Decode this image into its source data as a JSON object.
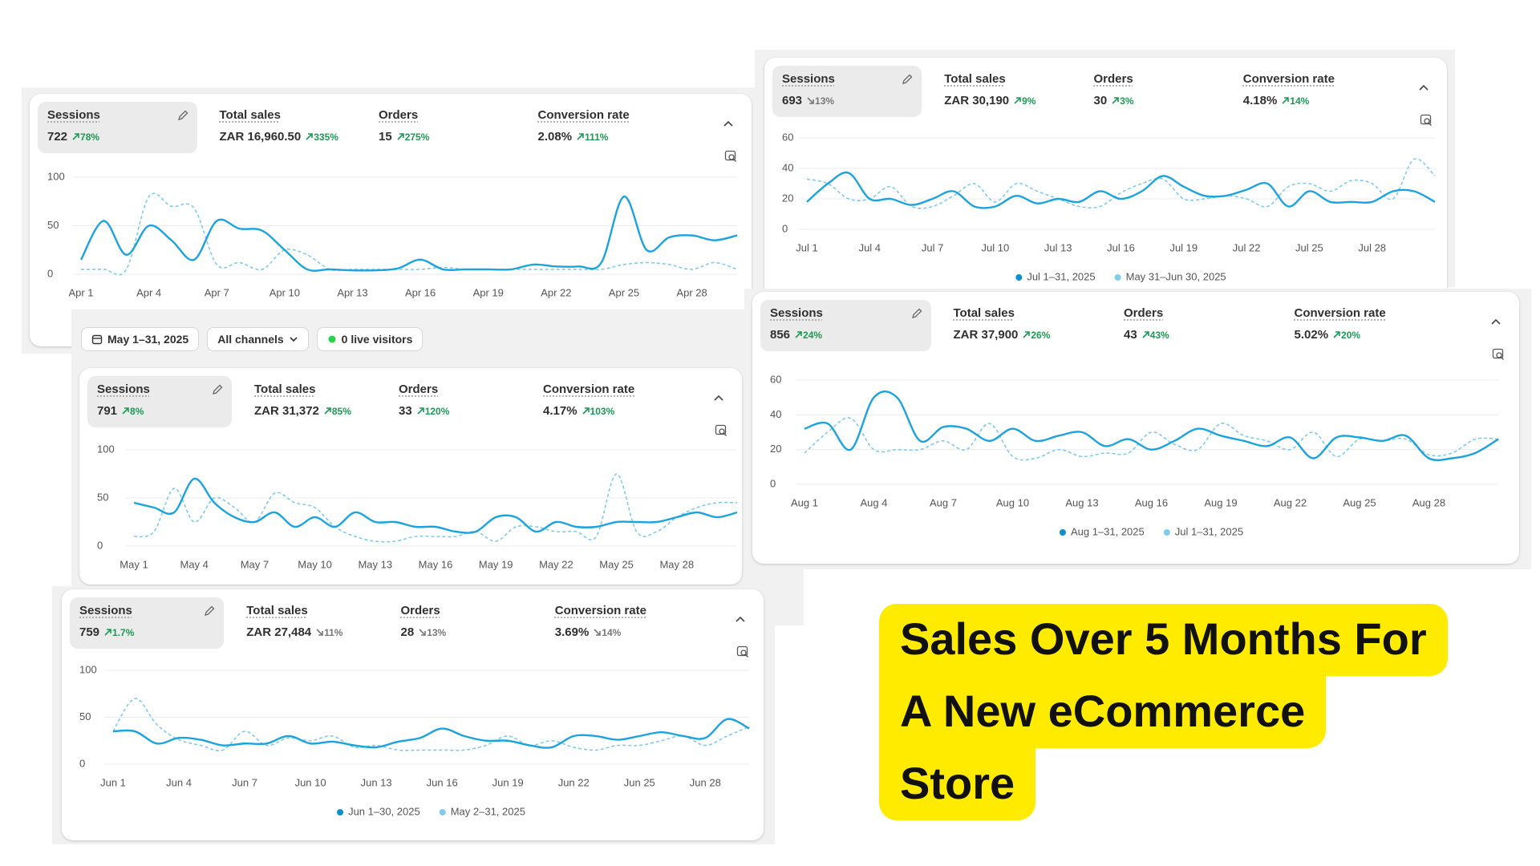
{
  "chart_data": [
    {
      "type": "line",
      "metrics": [
        {
          "label": "Sessions",
          "value": "722",
          "change": "78%",
          "trend": "up"
        },
        {
          "label": "Total sales",
          "value": "ZAR 16,960.50",
          "change": "335%",
          "trend": "up"
        },
        {
          "label": "Orders",
          "value": "15",
          "change": "275%",
          "trend": "up"
        },
        {
          "label": "Conversion rate",
          "value": "2.08%",
          "change": "111%",
          "trend": "up"
        }
      ],
      "categories": [
        "Apr 1",
        null,
        null,
        "Apr 4",
        null,
        null,
        "Apr 7",
        null,
        null,
        "Apr 10",
        null,
        null,
        "Apr 13",
        null,
        null,
        "Apr 16",
        null,
        null,
        "Apr 19",
        null,
        null,
        "Apr 22",
        null,
        null,
        "Apr 25",
        null,
        null,
        "Apr 28",
        null,
        null
      ],
      "series": [
        {
          "color": "#1ba3e0",
          "dashed": false,
          "values": [
            15,
            55,
            20,
            50,
            35,
            15,
            55,
            47,
            45,
            25,
            5,
            5,
            4,
            4,
            6,
            15,
            5,
            5,
            5,
            5,
            10,
            8,
            8,
            12,
            80,
            25,
            38,
            40,
            35,
            40
          ]
        },
        {
          "color": "#7fcbeb",
          "dashed": true,
          "values": [
            5,
            5,
            5,
            80,
            70,
            68,
            10,
            12,
            5,
            25,
            20,
            5,
            5,
            5,
            5,
            5,
            7,
            5,
            5,
            5,
            5,
            5,
            5,
            5,
            10,
            12,
            10,
            5,
            12,
            5
          ]
        }
      ],
      "ylim": [
        0,
        100
      ],
      "yticks": [
        0,
        50,
        100
      ],
      "grid": true
    },
    {
      "type": "line",
      "metrics": [
        {
          "label": "Sessions",
          "value": "693",
          "change": "13%",
          "trend": "down"
        },
        {
          "label": "Total sales",
          "value": "ZAR 30,190",
          "change": "9%",
          "trend": "up"
        },
        {
          "label": "Orders",
          "value": "30",
          "change": "3%",
          "trend": "up"
        },
        {
          "label": "Conversion rate",
          "value": "4.18%",
          "change": "14%",
          "trend": "up"
        }
      ],
      "categories": [
        "Jul 1",
        null,
        null,
        "Jul 4",
        null,
        null,
        "Jul 7",
        null,
        null,
        "Jul 10",
        null,
        null,
        "Jul 13",
        null,
        null,
        "Jul 16",
        null,
        null,
        "Jul 19",
        null,
        null,
        "Jul 22",
        null,
        null,
        "Jul 25",
        null,
        null,
        "Jul 28",
        null,
        null,
        null
      ],
      "series": [
        {
          "name": "Jul 1–31, 2025",
          "color": "#1ba3e0",
          "dashed": false,
          "values": [
            18,
            30,
            37,
            20,
            20,
            16,
            20,
            25,
            15,
            15,
            22,
            17,
            20,
            18,
            25,
            20,
            25,
            35,
            28,
            22,
            22,
            26,
            30,
            15,
            25,
            18,
            18,
            18,
            25,
            25,
            18
          ]
        },
        {
          "name": "May 31–Jun 30, 2025",
          "color": "#7fcbeb",
          "dashed": true,
          "values": [
            33,
            30,
            20,
            20,
            28,
            15,
            15,
            22,
            30,
            18,
            30,
            25,
            20,
            15,
            15,
            24,
            30,
            33,
            20,
            20,
            22,
            20,
            15,
            28,
            30,
            25,
            32,
            30,
            20,
            46,
            35
          ]
        }
      ],
      "ylim": [
        0,
        60
      ],
      "yticks": [
        0,
        20,
        40,
        60
      ],
      "grid": true
    },
    {
      "type": "line",
      "filters": [
        "May 1–31, 2025",
        "All channels",
        "0 live visitors"
      ],
      "metrics": [
        {
          "label": "Sessions",
          "value": "791",
          "change": "8%",
          "trend": "up"
        },
        {
          "label": "Total sales",
          "value": "ZAR 31,372",
          "change": "85%",
          "trend": "up"
        },
        {
          "label": "Orders",
          "value": "33",
          "change": "120%",
          "trend": "up"
        },
        {
          "label": "Conversion rate",
          "value": "4.17%",
          "change": "103%",
          "trend": "up"
        }
      ],
      "categories": [
        "May 1",
        null,
        null,
        "May 4",
        null,
        null,
        "May 7",
        null,
        null,
        "May 10",
        null,
        null,
        "May 13",
        null,
        null,
        "May 16",
        null,
        null,
        "May 19",
        null,
        null,
        "May 22",
        null,
        null,
        "May 25",
        null,
        null,
        "May 28",
        null,
        null,
        null
      ],
      "series": [
        {
          "color": "#1ba3e0",
          "dashed": false,
          "values": [
            45,
            40,
            35,
            70,
            45,
            30,
            25,
            35,
            20,
            30,
            20,
            35,
            25,
            25,
            20,
            20,
            15,
            15,
            30,
            30,
            15,
            25,
            20,
            20,
            25,
            25,
            25,
            30,
            35,
            30,
            35
          ]
        },
        {
          "color": "#7fcbeb",
          "dashed": true,
          "values": [
            10,
            15,
            60,
            25,
            50,
            40,
            25,
            55,
            45,
            40,
            20,
            10,
            5,
            5,
            10,
            10,
            10,
            15,
            5,
            20,
            20,
            15,
            15,
            10,
            75,
            15,
            15,
            30,
            40,
            45,
            45
          ]
        }
      ],
      "ylim": [
        0,
        100
      ],
      "yticks": [
        0,
        50,
        100
      ],
      "grid": true
    },
    {
      "type": "line",
      "metrics": [
        {
          "label": "Sessions",
          "value": "856",
          "change": "24%",
          "trend": "up"
        },
        {
          "label": "Total sales",
          "value": "ZAR 37,900",
          "change": "26%",
          "trend": "up"
        },
        {
          "label": "Orders",
          "value": "43",
          "change": "43%",
          "trend": "up"
        },
        {
          "label": "Conversion rate",
          "value": "5.02%",
          "change": "20%",
          "trend": "up"
        }
      ],
      "categories": [
        "Aug 1",
        null,
        null,
        "Aug 4",
        null,
        null,
        "Aug 7",
        null,
        null,
        "Aug 10",
        null,
        null,
        "Aug 13",
        null,
        null,
        "Aug 16",
        null,
        null,
        "Aug 19",
        null,
        null,
        "Aug 22",
        null,
        null,
        "Aug 25",
        null,
        null,
        "Aug 28",
        null,
        null,
        null
      ],
      "series": [
        {
          "name": "Aug 1–31, 2025",
          "color": "#1ba3e0",
          "dashed": false,
          "values": [
            32,
            35,
            20,
            50,
            50,
            25,
            33,
            32,
            25,
            32,
            25,
            28,
            30,
            22,
            26,
            20,
            25,
            32,
            28,
            25,
            22,
            27,
            15,
            27,
            27,
            25,
            28,
            15,
            15,
            18,
            26
          ]
        },
        {
          "name": "Jul 1–31, 2025",
          "color": "#7fcbeb",
          "dashed": true,
          "values": [
            18,
            30,
            38,
            20,
            20,
            20,
            25,
            20,
            35,
            16,
            15,
            20,
            16,
            18,
            18,
            30,
            23,
            20,
            35,
            28,
            25,
            20,
            30,
            16,
            26,
            25,
            26,
            17,
            18,
            26,
            26
          ]
        }
      ],
      "ylim": [
        0,
        60
      ],
      "yticks": [
        0,
        20,
        40,
        60
      ],
      "grid": true
    },
    {
      "type": "line",
      "metrics": [
        {
          "label": "Sessions",
          "value": "759",
          "change": "1.7%",
          "trend": "up"
        },
        {
          "label": "Total sales",
          "value": "ZAR 27,484",
          "change": "11%",
          "trend": "down"
        },
        {
          "label": "Orders",
          "value": "28",
          "change": "13%",
          "trend": "down"
        },
        {
          "label": "Conversion rate",
          "value": "3.69%",
          "change": "14%",
          "trend": "down"
        }
      ],
      "categories": [
        "Jun 1",
        null,
        null,
        "Jun 4",
        null,
        null,
        "Jun 7",
        null,
        null,
        "Jun 10",
        null,
        null,
        "Jun 13",
        null,
        null,
        "Jun 16",
        null,
        null,
        "Jun 19",
        null,
        null,
        "Jun 22",
        null,
        null,
        "Jun 25",
        null,
        null,
        "Jun 28",
        null,
        null
      ],
      "series": [
        {
          "name": "Jun 1–30, 2025",
          "color": "#1ba3e0",
          "dashed": false,
          "values": [
            35,
            35,
            22,
            28,
            26,
            20,
            22,
            22,
            30,
            22,
            24,
            20,
            18,
            24,
            28,
            38,
            30,
            25,
            25,
            20,
            18,
            30,
            30,
            26,
            30,
            34,
            30,
            28,
            48,
            38
          ]
        },
        {
          "name": "May 2–31, 2025",
          "color": "#7fcbeb",
          "dashed": true,
          "values": [
            35,
            70,
            42,
            26,
            20,
            15,
            35,
            20,
            28,
            25,
            30,
            18,
            20,
            15,
            15,
            15,
            15,
            20,
            30,
            20,
            25,
            18,
            15,
            20,
            20,
            25,
            30,
            20,
            30,
            40
          ]
        }
      ],
      "ylim": [
        0,
        100
      ],
      "yticks": [
        0,
        50,
        100
      ],
      "grid": true
    }
  ],
  "banner": {
    "lines": [
      "Sales Over 5 Months For",
      "A New eCommerce",
      "Store"
    ]
  }
}
